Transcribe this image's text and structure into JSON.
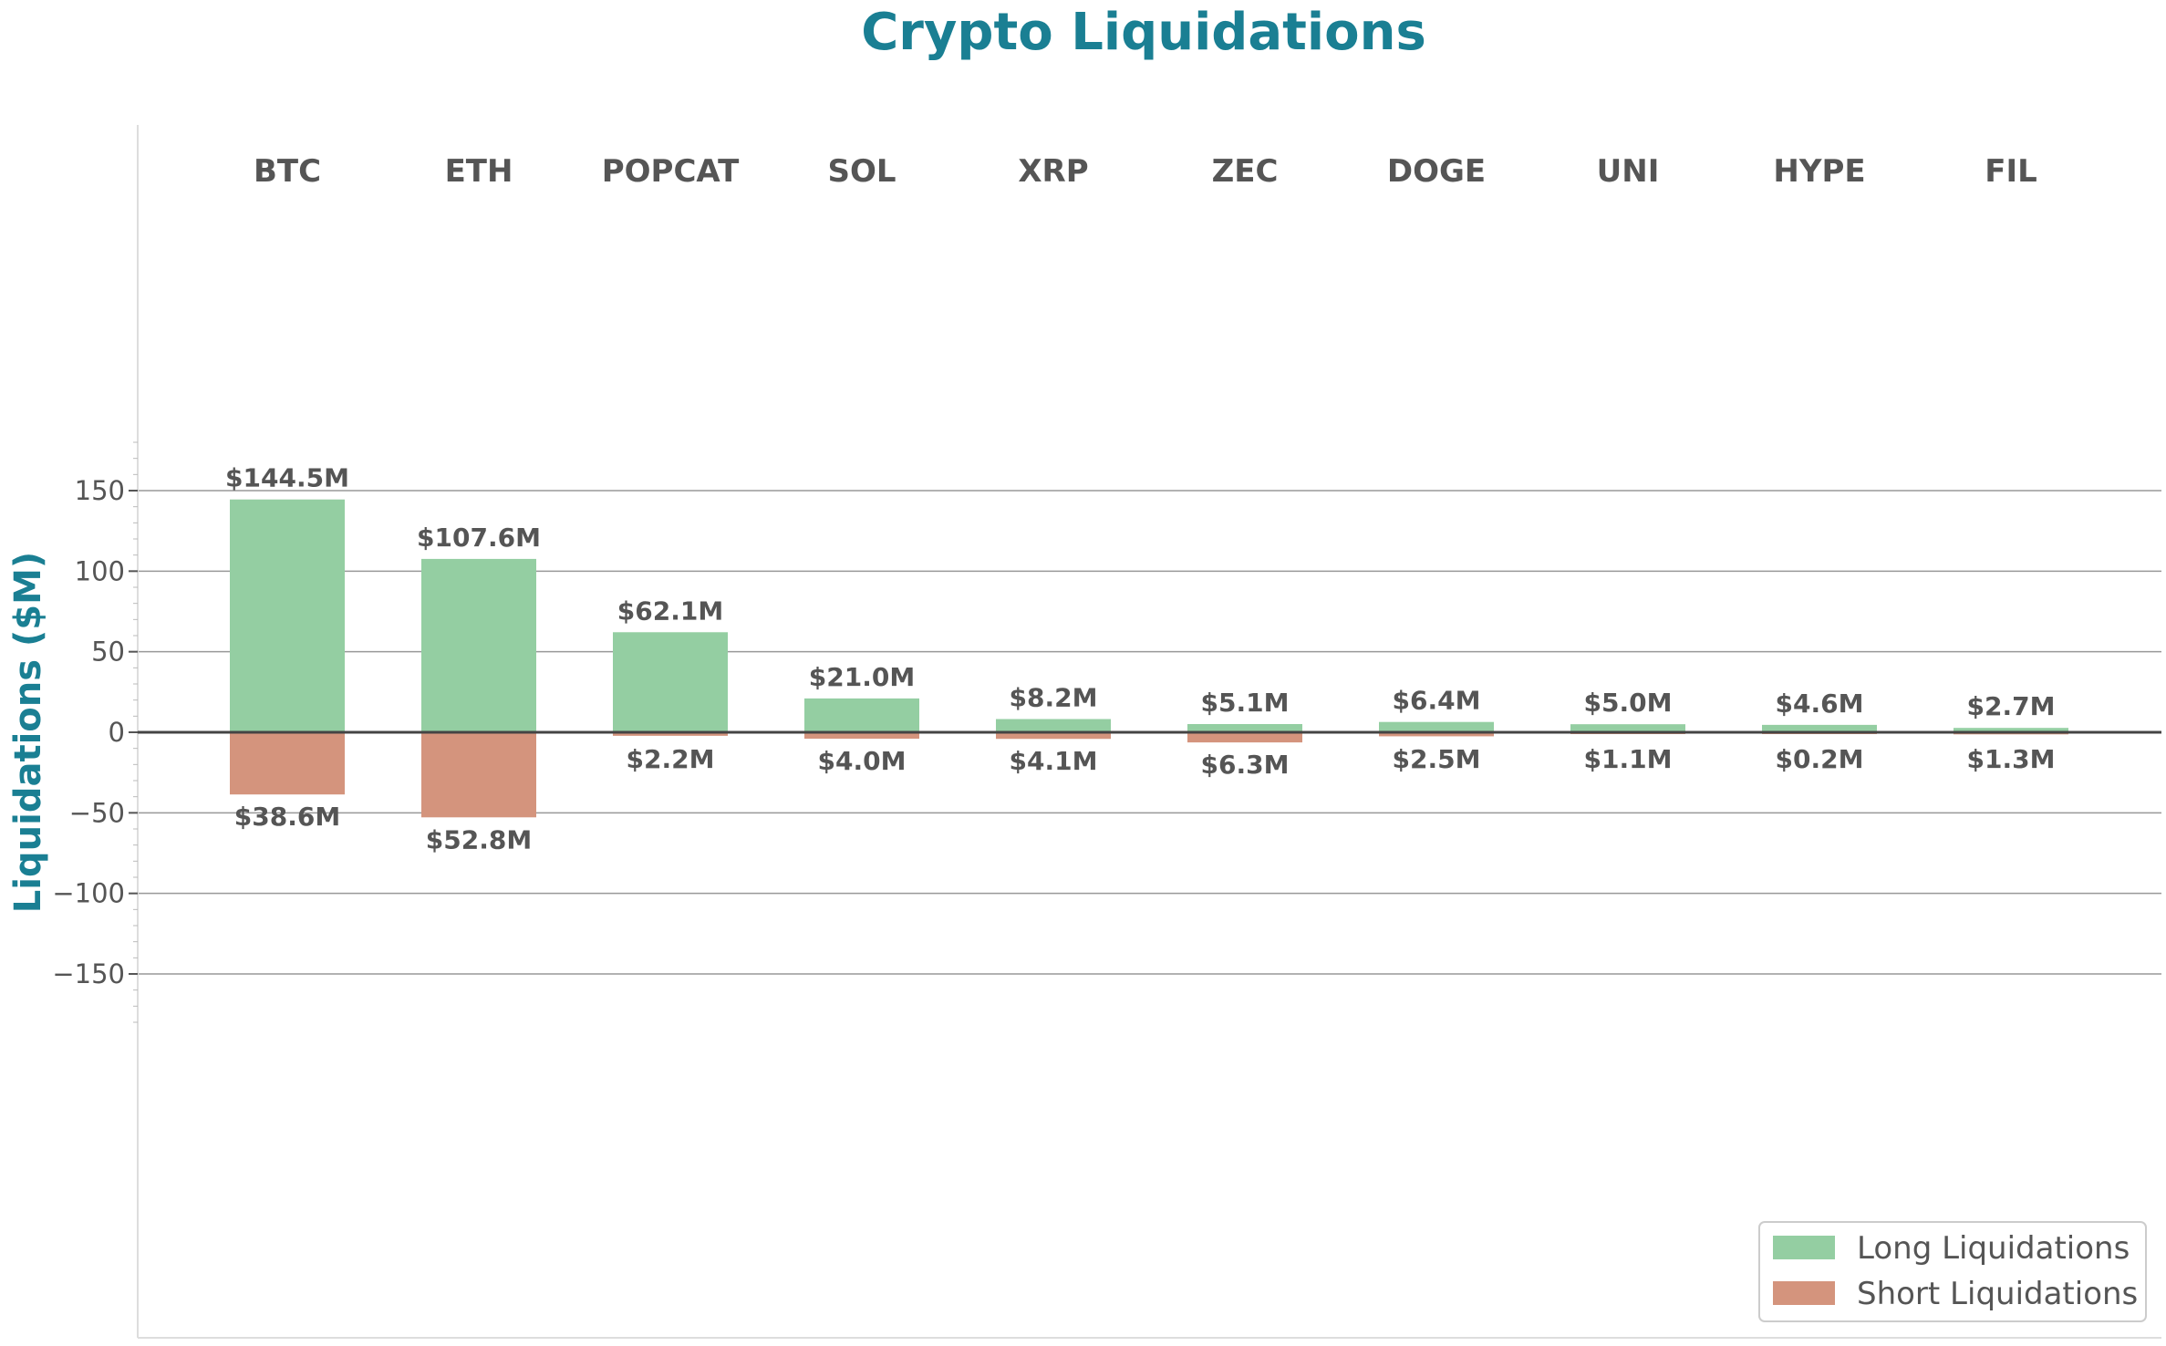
{
  "chart_data": {
    "type": "bar",
    "title": "Crypto Liquidations",
    "ylabel": "Liquidations ($M)",
    "xlabel": "",
    "ylim": [
      -190,
      190
    ],
    "yticks": [
      -150,
      -100,
      -50,
      0,
      50,
      100,
      150
    ],
    "ytick_labels": [
      "−150",
      "−100",
      "−50",
      "0",
      "50",
      "100",
      "150"
    ],
    "grid": "horizontal",
    "legend_position": "bottom-right",
    "categories": [
      "BTC",
      "ETH",
      "POPCAT",
      "SOL",
      "XRP",
      "ZEC",
      "DOGE",
      "UNI",
      "HYPE",
      "FIL"
    ],
    "series": [
      {
        "name": "Long Liquidations",
        "color": "#94cea2",
        "values": [
          144.5,
          107.6,
          62.1,
          21.0,
          8.2,
          5.1,
          6.4,
          5.0,
          4.6,
          2.7
        ],
        "labels": [
          "$144.5M",
          "$107.6M",
          "$62.1M",
          "$21.0M",
          "$8.2M",
          "$5.1M",
          "$6.4M",
          "$5.0M",
          "$4.6M",
          "$2.7M"
        ]
      },
      {
        "name": "Short Liquidations",
        "color": "#d4947d",
        "values": [
          -38.6,
          -52.8,
          -2.2,
          -4.0,
          -4.1,
          -6.3,
          -2.5,
          -1.1,
          -0.2,
          -1.3
        ],
        "labels": [
          "$38.6M",
          "$52.8M",
          "$2.2M",
          "$4.0M",
          "$4.1M",
          "$6.3M",
          "$2.5M",
          "$1.1M",
          "$0.2M",
          "$1.3M"
        ]
      }
    ]
  }
}
